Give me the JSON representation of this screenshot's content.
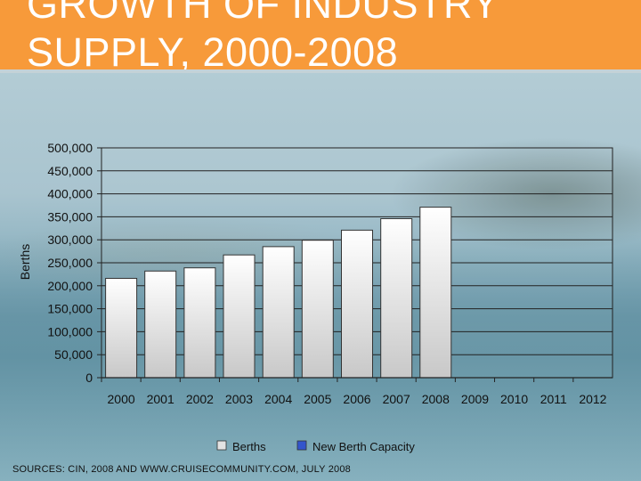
{
  "title": {
    "line1": "GROWTH OF INDUSTRY",
    "line2": "SUPPLY, 2000-2008"
  },
  "source": "SOURCES: CIN, 2008 AND WWW.CRUISECOMMUNITY.COM, JULY 2008",
  "colors": {
    "header": "#f79a3a",
    "berths": "#e3e3e3",
    "new_capacity": "#3355cc"
  },
  "chart_data": {
    "type": "bar",
    "title": "",
    "xlabel": "",
    "ylabel": "Berths",
    "categories": [
      "2000",
      "2001",
      "2002",
      "2003",
      "2004",
      "2005",
      "2006",
      "2007",
      "2008",
      "2009",
      "2010",
      "2011",
      "2012"
    ],
    "series": [
      {
        "name": "Berths",
        "values": [
          216000,
          232000,
          239000,
          267000,
          285000,
          299000,
          321000,
          346000,
          371000,
          null,
          null,
          null,
          null
        ]
      },
      {
        "name": "New Berth Capacity",
        "values": [
          null,
          null,
          null,
          null,
          null,
          null,
          null,
          null,
          null,
          null,
          null,
          null,
          null
        ]
      }
    ],
    "yticks": [
      "500,000",
      "450,000",
      "400,000",
      "350,000",
      "300,000",
      "250,000",
      "200,000",
      "150,000",
      "100,000",
      "50,000",
      "0"
    ],
    "ylim": [
      0,
      500000
    ],
    "grid": true,
    "legend": "bottom-center"
  }
}
